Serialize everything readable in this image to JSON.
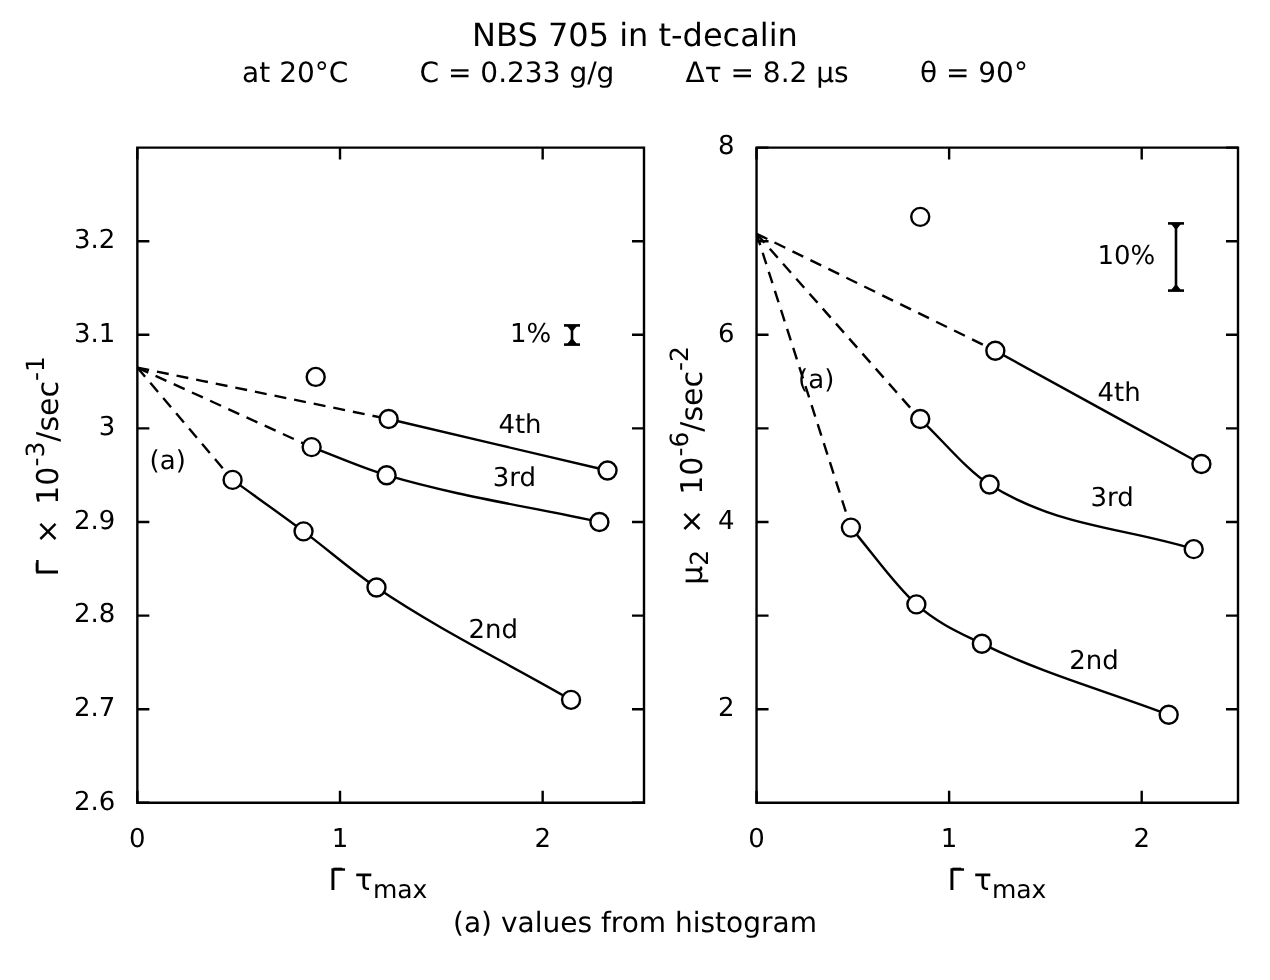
{
  "chart_data": [
    {
      "type": "line",
      "title": "NBS 705 in t-decalin",
      "subtitle": "at 20°C        C = 0.233 g/g        Δτ = 8.2 μs        θ = 90°",
      "xlabel": "Γ̄ τ$_{max}$",
      "ylabel": "Γ̄ × 10$^{-3}$/sec$^{-1}$",
      "marker": "circle",
      "xlim": [
        0,
        2.5
      ],
      "xticks": [
        0,
        1,
        2
      ],
      "ylim": [
        2.6,
        3.3
      ],
      "yticks": [
        2.6,
        2.7,
        2.8,
        2.9,
        3.0,
        3.1,
        3.2
      ],
      "series": [
        {
          "name": "2nd",
          "color": "#000000",
          "x": [
            0.47,
            0.82,
            1.18,
            2.14
          ],
          "values": [
            2.945,
            2.89,
            2.83,
            2.71
          ]
        },
        {
          "name": "3rd",
          "color": "#000000",
          "x": [
            0.86,
            1.23,
            2.28
          ],
          "values": [
            2.98,
            2.95,
            2.9
          ]
        },
        {
          "name": "4th",
          "color": "#000000",
          "x": [
            1.24,
            2.32
          ],
          "values": [
            3.01,
            2.955
          ]
        },
        {
          "type": "scatter",
          "color": "#000000",
          "x": [
            0.88
          ],
          "values": [
            3.055
          ]
        },
        {
          "color": "#000000",
          "line_style": "dashed",
          "marker": "none",
          "x": [
            0,
            0.47
          ],
          "values": [
            3.065,
            2.945
          ]
        },
        {
          "color": "#000000",
          "line_style": "dashed",
          "marker": "none",
          "x": [
            0,
            0.86
          ],
          "values": [
            3.065,
            2.98
          ]
        },
        {
          "color": "#000000",
          "line_style": "dashed",
          "marker": "none",
          "x": [
            0,
            1.24
          ],
          "values": [
            3.065,
            3.01
          ]
        }
      ],
      "annotations": [
        "(a)",
        "1%",
        "(a) values from histogram"
      ]
    },
    {
      "type": "line",
      "xlabel": "Γ̄ τ$_{max}$",
      "ylabel": "μ$_{2}$ × 10$^{-6}$/sec$^{-2}$",
      "marker": "circle",
      "xlim": [
        0,
        2.5
      ],
      "xticks": [
        0,
        1,
        2
      ],
      "ylim": [
        1,
        8
      ],
      "yticks": [
        2,
        {
          "value": 3,
          "label": null
        },
        4,
        {
          "value": 5,
          "label": null
        },
        6,
        {
          "value": 7,
          "label": null
        },
        8
      ],
      "series": [
        {
          "name": "2nd",
          "color": "#000000",
          "x": [
            0.49,
            0.83,
            1.17,
            2.14
          ],
          "values": [
            3.94,
            3.12,
            2.7,
            1.94
          ]
        },
        {
          "name": "3rd",
          "color": "#000000",
          "x": [
            0.85,
            1.21,
            2.27
          ],
          "values": [
            5.1,
            4.4,
            3.71
          ]
        },
        {
          "name": "4th",
          "color": "#000000",
          "x": [
            1.24,
            2.31
          ],
          "values": [
            5.83,
            4.62
          ]
        },
        {
          "type": "scatter",
          "color": "#000000",
          "x": [
            0.85
          ],
          "values": [
            7.26
          ]
        },
        {
          "color": "#000000",
          "line_style": "dashed",
          "marker": "none",
          "x": [
            0,
            0.49
          ],
          "values": [
            7.08,
            3.94
          ]
        },
        {
          "color": "#000000",
          "line_style": "dashed",
          "marker": "none",
          "x": [
            0,
            0.85
          ],
          "values": [
            7.08,
            5.1
          ]
        },
        {
          "color": "#000000",
          "line_style": "dashed",
          "marker": "none",
          "x": [
            0,
            1.24
          ],
          "values": [
            7.08,
            5.83
          ]
        }
      ],
      "annotations": [
        "(a)",
        "10%"
      ]
    }
  ]
}
